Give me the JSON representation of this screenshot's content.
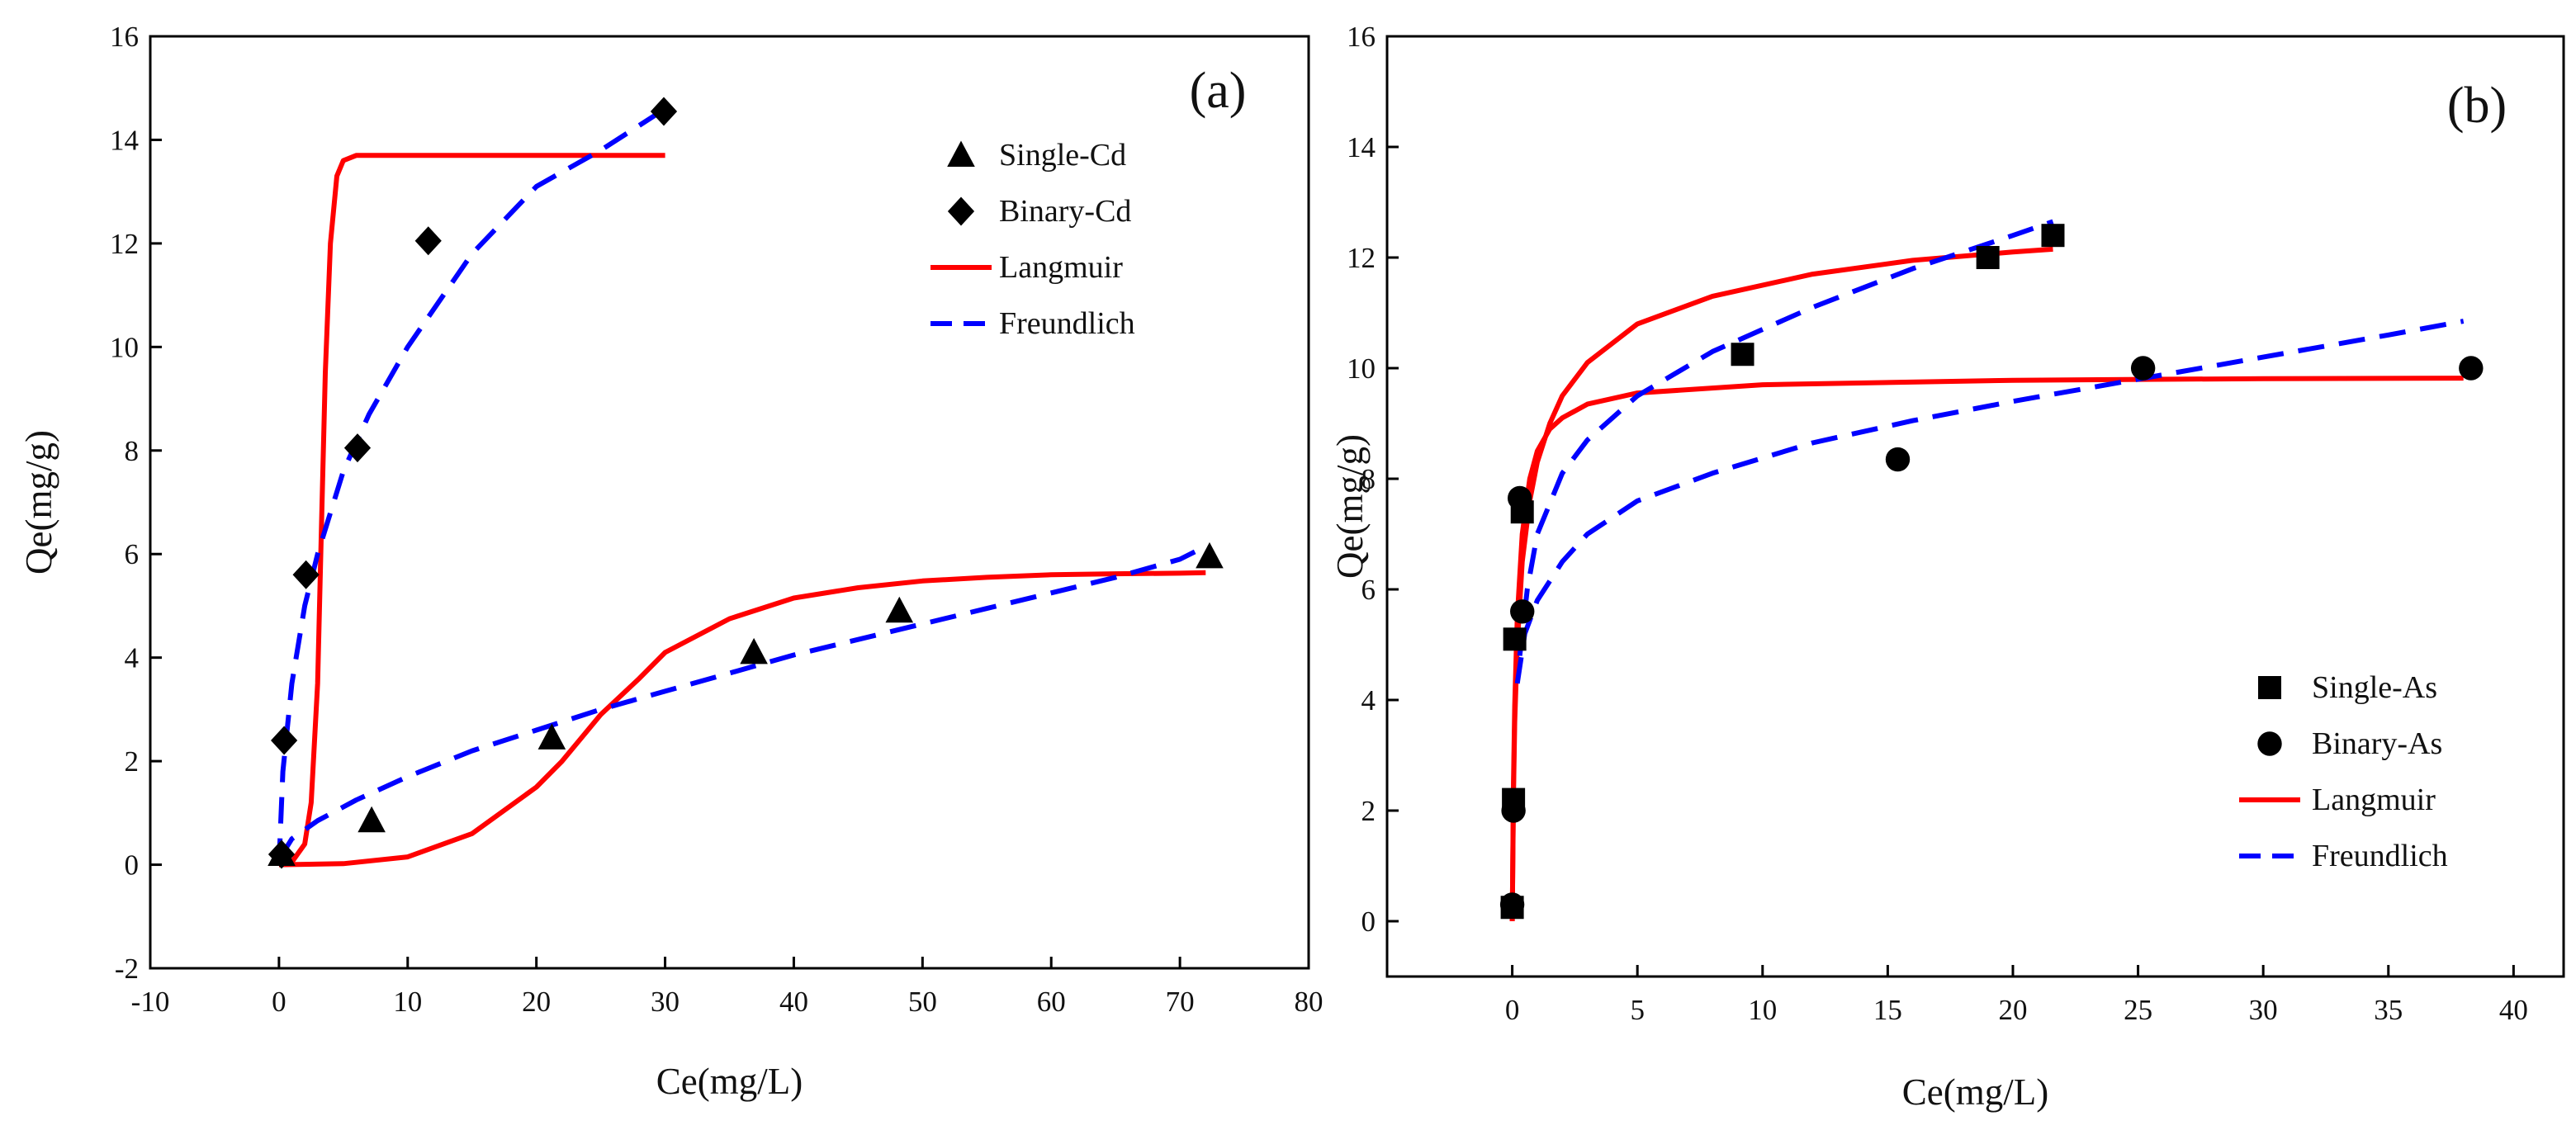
{
  "chart_data": [
    {
      "type": "scatter",
      "panel_label": "(a)",
      "xlabel": "Ce(mg/L)",
      "ylabel": "Qe(mg/g)",
      "xlim": [
        -10,
        80
      ],
      "ylim": [
        -2,
        16
      ],
      "xticks": [
        -10,
        0,
        10,
        20,
        30,
        40,
        50,
        60,
        70,
        80
      ],
      "yticks": [
        -2,
        0,
        2,
        4,
        6,
        8,
        10,
        12,
        14,
        16
      ],
      "legend_position": "top-right",
      "legend": [
        {
          "label": "Single-Cd",
          "kind": "marker",
          "marker": "triangle",
          "color": "#000000"
        },
        {
          "label": "Binary-Cd",
          "kind": "marker",
          "marker": "diamond",
          "color": "#000000"
        },
        {
          "label": "Langmuir",
          "kind": "line",
          "style": "solid",
          "color": "#ff0000"
        },
        {
          "label": "Freundlich",
          "kind": "line",
          "style": "dashed",
          "color": "#0000ff"
        }
      ],
      "series": [
        {
          "name": "Single-Cd",
          "kind": "scatter",
          "marker": "triangle",
          "color": "#000000",
          "x": [
            0.2,
            7.2,
            21.2,
            36.9,
            48.2,
            72.3
          ],
          "y": [
            0.2,
            0.85,
            2.45,
            4.1,
            4.9,
            5.95
          ]
        },
        {
          "name": "Binary-Cd",
          "kind": "scatter",
          "marker": "diamond",
          "color": "#000000",
          "x": [
            0.2,
            0.4,
            2.1,
            6.1,
            11.6,
            29.9
          ],
          "y": [
            0.2,
            2.4,
            5.6,
            8.05,
            12.05,
            14.55
          ]
        },
        {
          "name": "Langmuir",
          "kind": "line",
          "style": "solid",
          "color": "#ff0000",
          "x": [
            0,
            1,
            2,
            2.5,
            3,
            3.3,
            3.6,
            4,
            4.5,
            5,
            6,
            8,
            10,
            15,
            20,
            25,
            30
          ],
          "y": [
            0,
            0.05,
            0.4,
            1.2,
            3.5,
            6.5,
            9.5,
            12,
            13.3,
            13.6,
            13.7,
            13.7,
            13.7,
            13.7,
            13.7,
            13.7,
            13.7
          ]
        },
        {
          "name": "Freundlich",
          "kind": "line",
          "style": "dashed",
          "color": "#0000ff",
          "x": [
            0,
            0.3,
            1,
            2,
            3,
            5,
            7,
            10,
            15,
            20,
            25,
            30
          ],
          "y": [
            0,
            1.8,
            3.5,
            5.0,
            6.0,
            7.6,
            8.7,
            10.0,
            11.8,
            13.1,
            13.8,
            14.6
          ]
        },
        {
          "name": "Langmuir",
          "kind": "line",
          "style": "solid",
          "color": "#ff0000",
          "x": [
            0,
            5,
            10,
            15,
            20,
            22,
            25,
            28,
            30,
            35,
            40,
            45,
            50,
            55,
            60,
            65,
            70,
            72
          ],
          "y": [
            0,
            0.02,
            0.15,
            0.6,
            1.5,
            2.0,
            2.9,
            3.6,
            4.1,
            4.75,
            5.15,
            5.35,
            5.48,
            5.55,
            5.6,
            5.62,
            5.63,
            5.64
          ]
        },
        {
          "name": "Freundlich",
          "kind": "line",
          "style": "dashed",
          "color": "#0000ff",
          "x": [
            0,
            1,
            3,
            6,
            10,
            15,
            20,
            25,
            30,
            35,
            40,
            45,
            50,
            55,
            60,
            65,
            70,
            72
          ],
          "y": [
            0.1,
            0.5,
            0.85,
            1.25,
            1.7,
            2.2,
            2.6,
            3.0,
            3.35,
            3.7,
            4.05,
            4.35,
            4.65,
            4.95,
            5.25,
            5.55,
            5.9,
            6.15
          ]
        }
      ]
    },
    {
      "type": "scatter",
      "panel_label": "(b)",
      "xlabel": "Ce(mg/L)",
      "ylabel": "Qe(mg/g)",
      "xlim": [
        -5,
        42
      ],
      "ylim": [
        -1,
        16
      ],
      "xticks": [
        0,
        5,
        10,
        15,
        20,
        25,
        30,
        35,
        40
      ],
      "yticks": [
        0,
        2,
        4,
        6,
        8,
        10,
        12,
        14,
        16
      ],
      "legend_position": "bottom-right",
      "legend": [
        {
          "label": "Single-As",
          "kind": "marker",
          "marker": "square",
          "color": "#000000"
        },
        {
          "label": "Binary-As",
          "kind": "marker",
          "marker": "circle",
          "color": "#000000"
        },
        {
          "label": "Langmuir",
          "kind": "line",
          "style": "solid",
          "color": "#ff0000"
        },
        {
          "label": "Freundlich",
          "kind": "line",
          "style": "dashed",
          "color": "#0000ff"
        }
      ],
      "series": [
        {
          "name": "Single-As",
          "kind": "scatter",
          "marker": "square",
          "color": "#000000",
          "x": [
            0.0,
            0.05,
            0.1,
            0.4,
            9.2,
            19.0,
            21.6
          ],
          "y": [
            0.25,
            2.2,
            5.1,
            7.4,
            10.25,
            12.0,
            12.4
          ]
        },
        {
          "name": "Binary-As",
          "kind": "scatter",
          "marker": "circle",
          "color": "#000000",
          "x": [
            0.0,
            0.05,
            0.3,
            0.4,
            15.4,
            25.2,
            38.3
          ],
          "y": [
            0.3,
            2.0,
            7.65,
            5.6,
            8.35,
            10.0,
            10.0
          ]
        },
        {
          "name": "Langmuir",
          "kind": "line",
          "style": "solid",
          "color": "#ff0000",
          "x": [
            0,
            0.05,
            0.1,
            0.2,
            0.4,
            0.7,
            1,
            1.5,
            2,
            3,
            5,
            8,
            12,
            16,
            20,
            21.6
          ],
          "y": [
            0,
            2.3,
            3.6,
            5.0,
            6.5,
            7.6,
            8.3,
            9.0,
            9.5,
            10.1,
            10.8,
            11.3,
            11.7,
            11.95,
            12.1,
            12.15
          ]
        },
        {
          "name": "Langmuir",
          "kind": "line",
          "style": "solid",
          "color": "#ff0000",
          "x": [
            0,
            0.05,
            0.1,
            0.2,
            0.4,
            0.7,
            1,
            1.5,
            2,
            3,
            5,
            10,
            20,
            30,
            38
          ],
          "y": [
            0,
            2.5,
            3.9,
            5.5,
            7.0,
            8.0,
            8.5,
            8.9,
            9.1,
            9.35,
            9.55,
            9.7,
            9.78,
            9.81,
            9.82
          ]
        },
        {
          "name": "Freundlich",
          "kind": "line",
          "style": "dashed",
          "color": "#0000ff",
          "x": [
            0.3,
            0.6,
            1,
            2,
            3,
            5,
            8,
            12,
            16,
            20,
            21.6
          ],
          "y": [
            4.8,
            6.0,
            7.0,
            8.1,
            8.7,
            9.5,
            10.3,
            11.1,
            11.8,
            12.4,
            12.65
          ]
        },
        {
          "name": "Freundlich",
          "kind": "line",
          "style": "dashed",
          "color": "#0000ff",
          "x": [
            0.2,
            0.5,
            1,
            2,
            3,
            5,
            8,
            12,
            16,
            20,
            25,
            30,
            35,
            38
          ],
          "y": [
            4.3,
            5.2,
            5.8,
            6.5,
            7.0,
            7.6,
            8.1,
            8.65,
            9.05,
            9.4,
            9.8,
            10.2,
            10.6,
            10.85
          ]
        }
      ]
    }
  ]
}
